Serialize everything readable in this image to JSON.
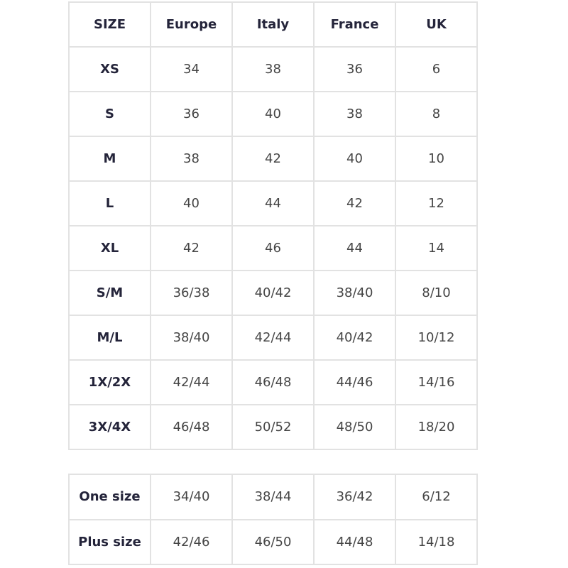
{
  "main_table": {
    "headers": [
      "SIZE",
      "Europe",
      "Italy",
      "France",
      "UK"
    ],
    "rows": [
      [
        "XS",
        "34",
        "38",
        "36",
        "6"
      ],
      [
        "S",
        "36",
        "40",
        "38",
        "8"
      ],
      [
        "M",
        "38",
        "42",
        "40",
        "10"
      ],
      [
        "L",
        "40",
        "44",
        "42",
        "12"
      ],
      [
        "XL",
        "42",
        "46",
        "44",
        "14"
      ],
      [
        "S/M",
        "36/38",
        "40/42",
        "38/40",
        "8/10"
      ],
      [
        "M/L",
        "38/40",
        "42/44",
        "40/42",
        "10/12"
      ],
      [
        "1X/2X",
        "42/44",
        "46/48",
        "44/46",
        "14/16"
      ],
      [
        "3X/4X",
        "46/48",
        "50/52",
        "48/50",
        "18/20"
      ]
    ]
  },
  "secondary_table": {
    "rows": [
      [
        "One size",
        "34/40",
        "38/44",
        "36/42",
        "6/12"
      ],
      [
        "Plus size",
        "42/46",
        "46/50",
        "44/48",
        "14/18"
      ]
    ]
  }
}
